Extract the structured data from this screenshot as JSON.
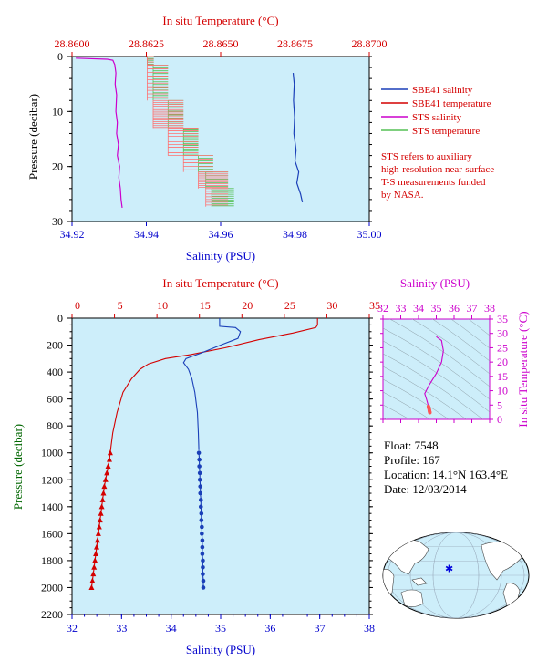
{
  "chart_data": [
    {
      "type": "line",
      "title": "",
      "xlabel_bottom": "Salinity (PSU)",
      "xlabel_top": "In situ Temperature (°C)",
      "ylabel": "Pressure (decibar)",
      "salinity_range": [
        34.92,
        35.0
      ],
      "temperature_range": [
        28.86,
        28.87
      ],
      "pressure_range": [
        0,
        30
      ],
      "bottom_ticks": [
        "34.92",
        "34.94",
        "34.96",
        "34.98",
        "35.00"
      ],
      "top_ticks": [
        "28.8600",
        "28.8625",
        "28.8650",
        "28.8675",
        "28.8700"
      ],
      "y_ticks": [
        "0",
        "10",
        "20",
        "30"
      ],
      "legend": [
        "SBE41 salinity",
        "SBE41 temperature",
        "STS salinity",
        "STS temperature"
      ],
      "note": [
        "STS refers to auxiliary",
        "high-resolution near-surface",
        "T-S measurements funded",
        "by NASA."
      ],
      "series": [
        {
          "name": "SBE41 salinity",
          "color": "#1a3fb8",
          "points": [
            [
              34.9795,
              3
            ],
            [
              34.9798,
              5
            ],
            [
              34.9796,
              8
            ],
            [
              34.9799,
              11
            ],
            [
              34.9797,
              14
            ],
            [
              34.9803,
              17
            ],
            [
              34.98,
              19
            ],
            [
              34.981,
              21
            ],
            [
              34.9805,
              23
            ],
            [
              34.9815,
              25
            ],
            [
              34.982,
              26.5
            ]
          ]
        },
        {
          "name": "STS salinity",
          "color": "#cc00cc",
          "points": [
            [
              34.921,
              0.3
            ],
            [
              34.9295,
              0.5
            ],
            [
              34.931,
              0.7
            ],
            [
              34.9315,
              1.5
            ],
            [
              34.9318,
              3
            ],
            [
              34.9316,
              5
            ],
            [
              34.932,
              7
            ],
            [
              34.9318,
              10
            ],
            [
              34.9322,
              12
            ],
            [
              34.932,
              14
            ],
            [
              34.9325,
              16
            ],
            [
              34.9322,
              18
            ],
            [
              34.9328,
              20
            ],
            [
              34.9326,
              22
            ],
            [
              34.933,
              24
            ],
            [
              34.9332,
              26
            ],
            [
              34.9335,
              27.5
            ]
          ]
        },
        {
          "name": "STS temperature",
          "color": "#55c055",
          "steps": [
            [
              0,
              1.6,
              28.86253,
              28.86275
            ],
            [
              1.6,
              8,
              28.86273,
              28.86323
            ],
            [
              8,
              13,
              28.86323,
              28.86375
            ],
            [
              13,
              18,
              28.86375,
              28.86425
            ],
            [
              18,
              21,
              28.86425,
              28.86475
            ],
            [
              21,
              24,
              28.8645,
              28.86525
            ],
            [
              24,
              27.3,
              28.8647,
              28.86545
            ]
          ]
        },
        {
          "name": "SBE41 temperature",
          "color": "#ff7070",
          "steps": [
            [
              0,
              1.6,
              28.86253,
              28.86275
            ],
            [
              1.6,
              8,
              28.86253,
              28.86323
            ],
            [
              8,
              13,
              28.86273,
              28.86375
            ],
            [
              13,
              18,
              28.86323,
              28.86425
            ],
            [
              18,
              21,
              28.86375,
              28.86475
            ],
            [
              21,
              24,
              28.86425,
              28.86525
            ],
            [
              24,
              27.3,
              28.8645,
              28.86525
            ]
          ]
        }
      ]
    },
    {
      "type": "line",
      "title": "",
      "xlabel_bottom": "Salinity (PSU)",
      "xlabel_top": "In situ Temperature (°C)",
      "ylabel": "Pressure (decibar)",
      "salinity_range": [
        32,
        38
      ],
      "temperature_range": [
        0,
        35
      ],
      "pressure_range": [
        0,
        2200
      ],
      "bottom_ticks": [
        "32",
        "33",
        "34",
        "35",
        "36",
        "37",
        "38"
      ],
      "top_ticks": [
        "0",
        "5",
        "10",
        "15",
        "20",
        "25",
        "30",
        "35"
      ],
      "y_ticks": [
        "0",
        "200",
        "400",
        "600",
        "800",
        "1000",
        "1200",
        "1400",
        "1600",
        "1800",
        "2000",
        "2200"
      ],
      "series": [
        {
          "name": "",
          "quantity": "temperature",
          "color": "#d40000",
          "points": [
            [
              28.9,
              0
            ],
            [
              28.9,
              50
            ],
            [
              28.7,
              70
            ],
            [
              26,
              110
            ],
            [
              22,
              160
            ],
            [
              18,
              220
            ],
            [
              14,
              270
            ],
            [
              11,
              300
            ],
            [
              9,
              340
            ],
            [
              8,
              380
            ],
            [
              7,
              450
            ],
            [
              6,
              550
            ],
            [
              5.3,
              700
            ],
            [
              4.8,
              850
            ],
            [
              4.6,
              950
            ],
            [
              4.5,
              1000
            ]
          ]
        },
        {
          "name": "",
          "quantity": "temperature",
          "color": "#d40000",
          "markers": "triangle",
          "points": [
            [
              4.5,
              1000
            ],
            [
              4.4,
              1050
            ],
            [
              4.25,
              1100
            ],
            [
              4.1,
              1150
            ],
            [
              3.95,
              1200
            ],
            [
              3.8,
              1250
            ],
            [
              3.7,
              1300
            ],
            [
              3.6,
              1350
            ],
            [
              3.5,
              1400
            ],
            [
              3.4,
              1450
            ],
            [
              3.3,
              1500
            ],
            [
              3.2,
              1550
            ],
            [
              3.1,
              1600
            ],
            [
              3.0,
              1650
            ],
            [
              2.9,
              1700
            ],
            [
              2.8,
              1750
            ],
            [
              2.7,
              1800
            ],
            [
              2.6,
              1850
            ],
            [
              2.5,
              1900
            ],
            [
              2.4,
              1950
            ],
            [
              2.3,
              2000
            ]
          ]
        },
        {
          "name": "",
          "quantity": "salinity",
          "color": "#1a3fb8",
          "points": [
            [
              34.98,
              0
            ],
            [
              34.98,
              60
            ],
            [
              35.3,
              70
            ],
            [
              35.4,
              100
            ],
            [
              35.35,
              150
            ],
            [
              35.0,
              200
            ],
            [
              34.6,
              260
            ],
            [
              34.3,
              300
            ],
            [
              34.25,
              330
            ],
            [
              34.35,
              380
            ],
            [
              34.42,
              450
            ],
            [
              34.48,
              550
            ],
            [
              34.53,
              700
            ],
            [
              34.55,
              850
            ],
            [
              34.56,
              980
            ]
          ]
        },
        {
          "name": "",
          "quantity": "salinity",
          "color": "#1a3fb8",
          "markers": "dot",
          "points": [
            [
              34.56,
              1000
            ],
            [
              34.57,
              1050
            ],
            [
              34.57,
              1100
            ],
            [
              34.58,
              1150
            ],
            [
              34.58,
              1200
            ],
            [
              34.59,
              1250
            ],
            [
              34.59,
              1300
            ],
            [
              34.6,
              1350
            ],
            [
              34.6,
              1400
            ],
            [
              34.61,
              1450
            ],
            [
              34.61,
              1500
            ],
            [
              34.62,
              1550
            ],
            [
              34.62,
              1600
            ],
            [
              34.63,
              1650
            ],
            [
              34.63,
              1700
            ],
            [
              34.63,
              1750
            ],
            [
              34.64,
              1800
            ],
            [
              34.64,
              1850
            ],
            [
              34.64,
              1900
            ],
            [
              34.65,
              1950
            ],
            [
              34.65,
              2000
            ]
          ]
        }
      ]
    },
    {
      "type": "scatter",
      "title": "",
      "xlabel": "Salinity (PSU)",
      "ylabel": "In situ Temperature (°C)",
      "xlim": [
        32,
        38
      ],
      "ylim": [
        0,
        35
      ],
      "x_ticks": [
        "32",
        "33",
        "34",
        "35",
        "36",
        "37",
        "38"
      ],
      "y_ticks": [
        "0",
        "5",
        "10",
        "15",
        "20",
        "25",
        "30",
        "35"
      ],
      "series": [
        {
          "name": "",
          "color": "#cc00cc",
          "points": [
            [
              35.0,
              28.9
            ],
            [
              35.3,
              27.5
            ],
            [
              35.4,
              24
            ],
            [
              35.3,
              20
            ],
            [
              35.0,
              16
            ],
            [
              34.6,
              12
            ],
            [
              34.35,
              9
            ],
            [
              34.45,
              7
            ],
            [
              34.52,
              5.5
            ],
            [
              34.56,
              4.5
            ]
          ]
        },
        {
          "name": "",
          "color": "#ff5555",
          "markers": "dot",
          "points": [
            [
              34.56,
              4.5
            ],
            [
              34.58,
              4.0
            ],
            [
              34.6,
              3.6
            ],
            [
              34.61,
              3.2
            ],
            [
              34.62,
              2.9
            ],
            [
              34.63,
              2.6
            ],
            [
              34.64,
              2.4
            ]
          ]
        }
      ]
    }
  ],
  "float_info": {
    "float": "Float:  7548",
    "profile": "Profile:  167",
    "location": "Location:  14.1°N  163.4°E",
    "date": "Date:  12/03/2014"
  },
  "map": {
    "marker_lat": 14.1,
    "marker_lon": 163.4
  }
}
